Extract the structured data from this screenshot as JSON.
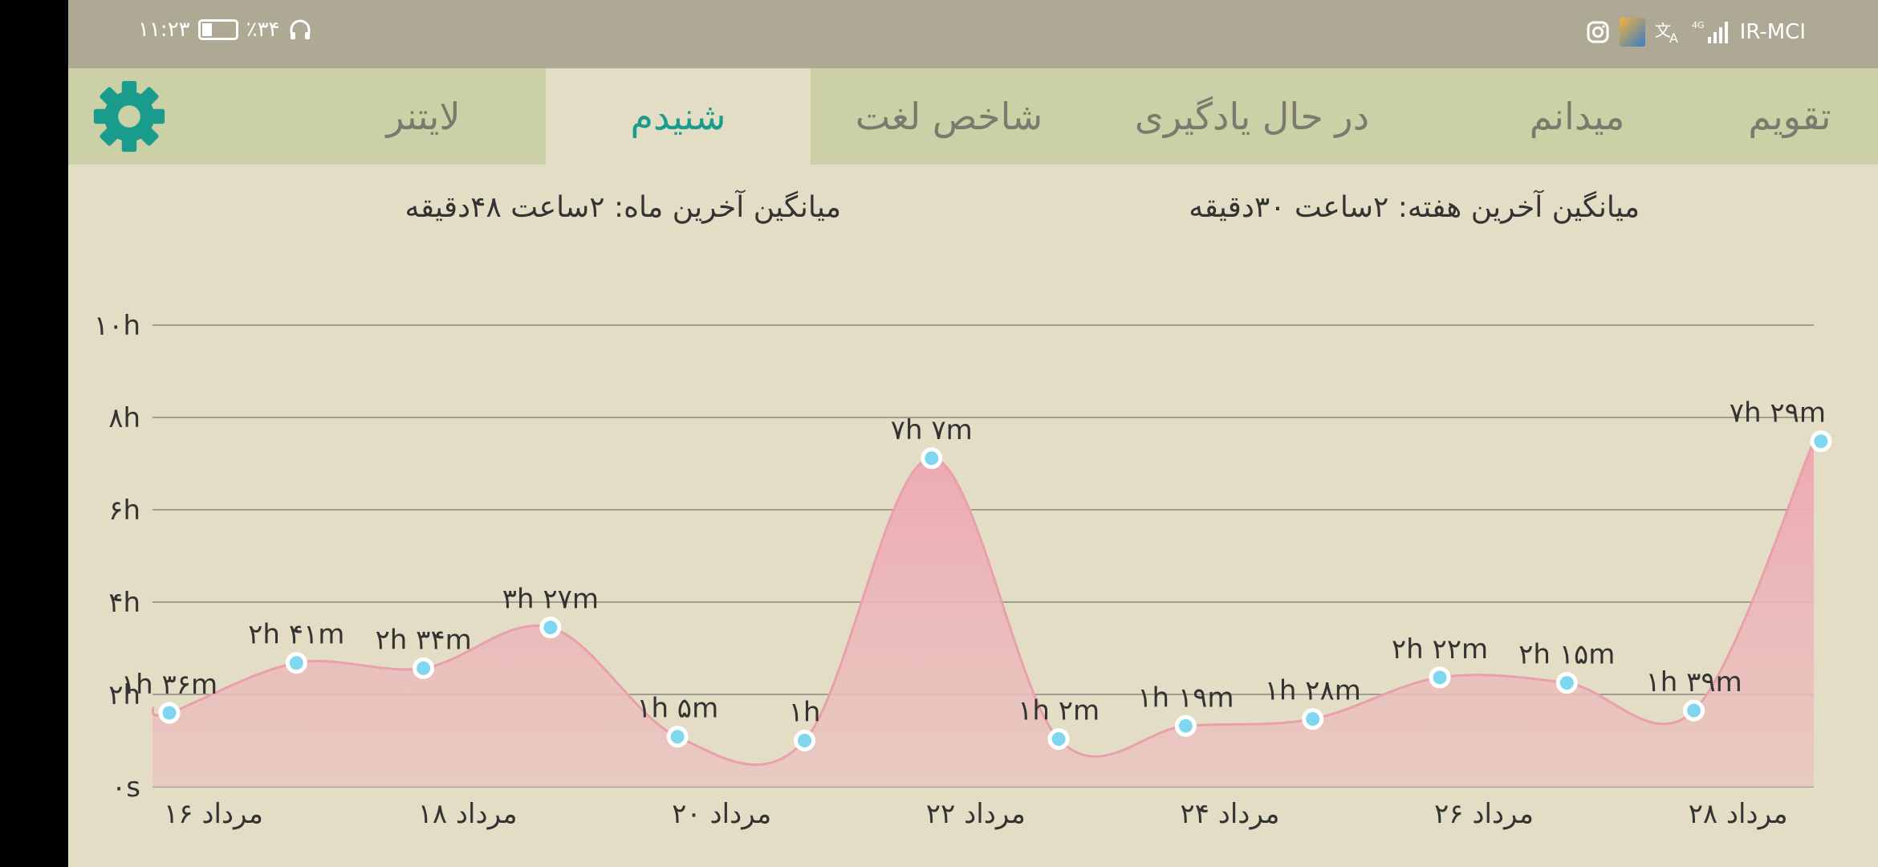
{
  "status_bar": {
    "time": "۱۱:۲۳",
    "battery_percent": "٪۳۴",
    "carrier": "IR-MCI",
    "network": "4G",
    "icons": [
      "headphones-icon",
      "battery-icon",
      "instagram-icon",
      "app-thumbnail-icon",
      "translate-icon",
      "signal-icon"
    ]
  },
  "tabs": [
    {
      "label": "تقویم",
      "active": false
    },
    {
      "label": "میدانم",
      "active": false
    },
    {
      "label": "در حال یادگیری",
      "active": false
    },
    {
      "label": "شاخص لغت",
      "active": false
    },
    {
      "label": "شنیدم",
      "active": true
    },
    {
      "label": "لایتنر",
      "active": false
    }
  ],
  "settings_icon": "gear-icon",
  "colors": {
    "accent": "#1a9c8c",
    "tab_bar": "#ccd0a6",
    "background": "#e3ddc5",
    "status_bar": "#aea994",
    "area_fill": "#eeaab4",
    "line": "#e9a0ab",
    "point": "#7fd7ef"
  },
  "summary": {
    "week_label": "میانگین آخرین هفته:",
    "week_hours": "۲ساعت",
    "week_minutes": "۳۰دقیقه",
    "month_label": "میانگین آخرین ماه:",
    "month_hours": "۲ساعت",
    "month_minutes": "۴۸دقیقه"
  },
  "chart_data": {
    "type": "area",
    "y_tick_labels": [
      "۰s",
      "۲h",
      "۴h",
      "۶h",
      "۸h",
      "۱۰h"
    ],
    "y_ticks": [
      0,
      2,
      4,
      6,
      8,
      10
    ],
    "ylim": [
      0,
      10
    ],
    "grid": true,
    "x": [
      16,
      17,
      18,
      19,
      20,
      21,
      22,
      23,
      24,
      25,
      26,
      27,
      28,
      29
    ],
    "x_tick_labels": [
      "۱۶ مرداد",
      "۱۸ مرداد",
      "۲۰ مرداد",
      "۲۲ مرداد",
      "۲۴ مرداد",
      "۲۶ مرداد",
      "۲۸ مرداد"
    ],
    "x_ticks": [
      16,
      18,
      20,
      22,
      24,
      26,
      28
    ],
    "values": [
      1.6,
      2.683,
      2.567,
      3.45,
      1.083,
      1.0,
      7.117,
      1.033,
      1.317,
      1.467,
      2.367,
      2.25,
      1.65,
      7.483
    ],
    "data_labels": [
      "۱h ۳۶m",
      "۲h ۴۱m",
      "۲h ۳۴m",
      "۳h ۲۷m",
      "۱h ۵m",
      "۱h",
      "۷h ۷m",
      "۱h ۲m",
      "۱h ۱۹m",
      "۱h ۲۸m",
      "۲h ۲۲m",
      "۲h ۱۵m",
      "۱h ۳۹m",
      "۷h ۲۹m"
    ]
  }
}
